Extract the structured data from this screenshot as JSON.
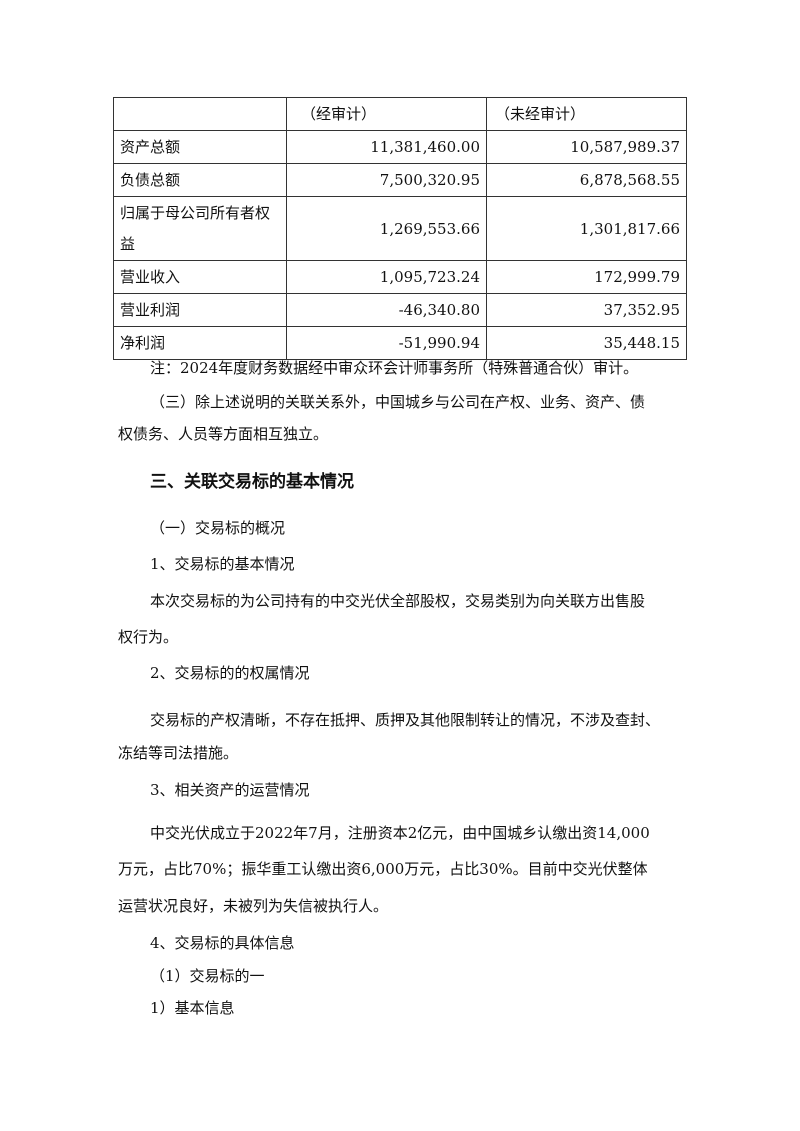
{
  "table": {
    "header": [
      "",
      "（经审计）",
      "（未经审计）"
    ],
    "rows": [
      [
        "资产总额",
        "11,381,460.00",
        "10,587,989.37"
      ],
      [
        "负债总额",
        "7,500,320.95",
        "6,878,568.55"
      ],
      [
        "归属于母公司所有者权益",
        "1,269,553.66",
        "1,301,817.66"
      ],
      [
        "营业收入",
        "1,095,723.24",
        "172,999.79"
      ],
      [
        "营业利润",
        "-46,340.80",
        "37,352.95"
      ],
      [
        "净利润",
        "-51,990.94",
        "35,448.15"
      ]
    ]
  },
  "lines": [
    "注：2024年度财务数据经中审众环会计师事务所（特殊普通合伙）审计。",
    "（三）除上述说明的关联关系外，中国城乡与公司在产权、业务、资产、债",
    "权债务、人员等方面相互独立。",
    "三、关联交易标的基本情况",
    "（一）交易标的概况",
    "1、交易标的基本情况",
    "本次交易标的为公司持有的中交光伏全部股权，交易类别为向关联方出售股",
    "权行为。",
    "2、交易标的的权属情况",
    "交易标的产权清晰，不存在抵押、质押及其他限制转让的情况，不涉及查封、",
    "冻结等司法措施。",
    "3、相关资产的运营情况",
    "中交光伏成立于2022年7月，注册资本2亿元，由中国城乡认缴出资14,000",
    "万元，占比70%；振华重工认缴出资6,000万元，占比30%。目前中交光伏整体",
    "运营状况良好，未被列为失信被执行人。",
    "4、交易标的具体信息",
    "（1）交易标的一",
    "1）基本信息"
  ]
}
